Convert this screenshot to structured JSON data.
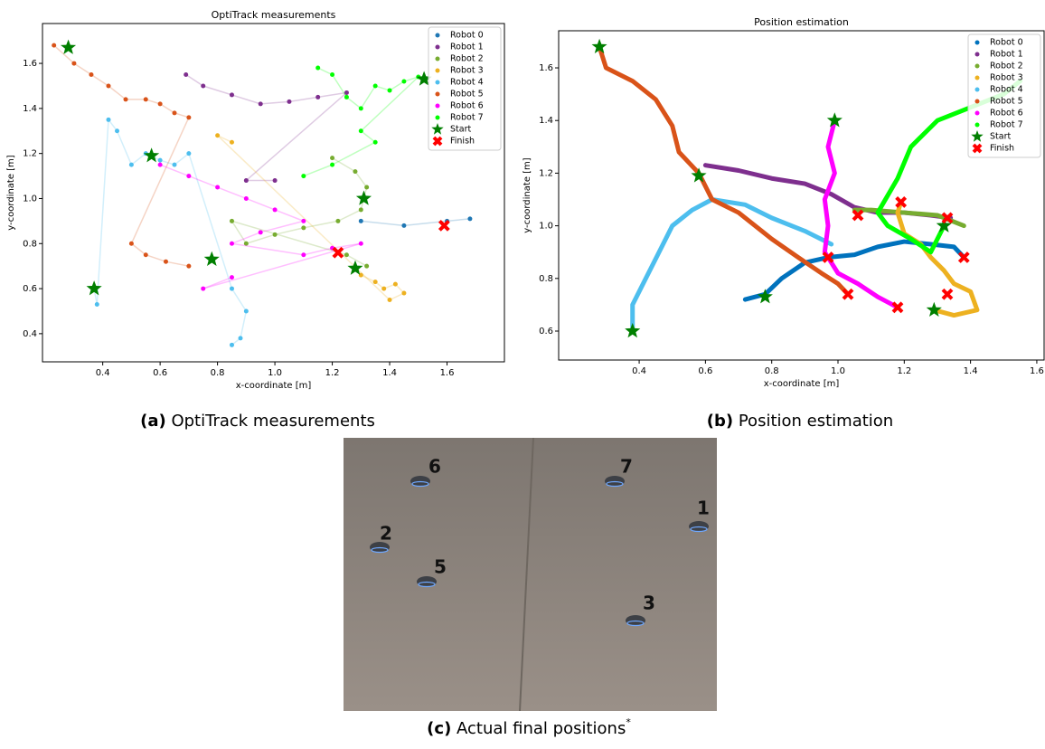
{
  "chart_data": [
    {
      "type": "scatter",
      "title": "OptiTrack measurements",
      "xlabel": "x-coordinate [m]",
      "ylabel": "y-coordinate [m]",
      "xlim": [
        0.19,
        1.8
      ],
      "ylim": [
        0.275,
        1.777
      ],
      "xticks": [
        0.4,
        0.6,
        0.8,
        {
          "value": 1,
          "label": "1.0"
        },
        1.2,
        1.4,
        1.6
      ],
      "yticks": [
        0.4,
        0.6,
        0.8,
        {
          "value": 1,
          "label": "1.0"
        },
        1.2,
        1.4,
        1.6
      ],
      "legend": "upper right",
      "series": [
        {
          "name": "Robot 0",
          "color": "#1f77b4",
          "marker": "dot",
          "x": [
            1.3,
            1.45,
            1.6,
            1.68
          ],
          "values": [
            0.9,
            0.88,
            0.9,
            0.91
          ]
        },
        {
          "name": "Robot 1",
          "color": "#7e2f8e",
          "marker": "dot",
          "x": [
            0.69,
            0.75,
            0.85,
            0.95,
            1.05,
            1.15,
            1.25,
            0.9,
            1.0
          ],
          "values": [
            1.55,
            1.5,
            1.46,
            1.42,
            1.43,
            1.45,
            1.47,
            1.08,
            1.08
          ]
        },
        {
          "name": "Robot 2",
          "color": "#77ac30",
          "marker": "dot",
          "x": [
            1.2,
            1.28,
            1.32,
            1.3,
            1.22,
            1.1,
            1.0,
            0.9,
            0.85,
            1.25,
            1.32
          ],
          "values": [
            1.18,
            1.12,
            1.05,
            0.95,
            0.9,
            0.87,
            0.84,
            0.8,
            0.9,
            0.75,
            0.7
          ]
        },
        {
          "name": "Robot 3",
          "color": "#edb120",
          "marker": "dot",
          "x": [
            1.3,
            1.35,
            1.38,
            1.42,
            1.45,
            1.4,
            0.8,
            0.85
          ],
          "values": [
            0.66,
            0.63,
            0.6,
            0.62,
            0.58,
            0.55,
            1.28,
            1.25
          ]
        },
        {
          "name": "Robot 4",
          "color": "#4dbeee",
          "marker": "dot",
          "x": [
            0.37,
            0.38,
            0.42,
            0.45,
            0.5,
            0.55,
            0.6,
            0.65,
            0.7,
            0.85,
            0.9,
            0.88,
            0.85
          ],
          "values": [
            0.6,
            0.53,
            1.35,
            1.3,
            1.15,
            1.2,
            1.17,
            1.15,
            1.2,
            0.6,
            0.5,
            0.38,
            0.35
          ]
        },
        {
          "name": "Robot 5",
          "color": "#d95319",
          "marker": "dot",
          "x": [
            0.23,
            0.3,
            0.36,
            0.42,
            0.48,
            0.55,
            0.6,
            0.65,
            0.7,
            0.5,
            0.55,
            0.62,
            0.7
          ],
          "values": [
            1.68,
            1.6,
            1.55,
            1.5,
            1.44,
            1.44,
            1.42,
            1.38,
            1.36,
            0.8,
            0.75,
            0.72,
            0.7
          ]
        },
        {
          "name": "Robot 6",
          "color": "#ff00ff",
          "marker": "dot",
          "x": [
            0.6,
            0.7,
            0.8,
            0.9,
            1.0,
            1.1,
            0.95,
            0.85,
            1.1,
            1.2,
            1.3,
            0.75,
            0.85
          ],
          "values": [
            1.15,
            1.1,
            1.05,
            1.0,
            0.95,
            0.9,
            0.85,
            0.8,
            0.75,
            0.78,
            0.8,
            0.6,
            0.65
          ]
        },
        {
          "name": "Robot 7",
          "color": "#00ff00",
          "marker": "dot",
          "x": [
            1.15,
            1.2,
            1.25,
            1.3,
            1.35,
            1.4,
            1.45,
            1.5,
            1.3,
            1.35,
            1.2,
            1.1
          ],
          "values": [
            1.58,
            1.55,
            1.45,
            1.4,
            1.5,
            1.48,
            1.52,
            1.54,
            1.3,
            1.25,
            1.15,
            1.1
          ]
        },
        {
          "name": "Start",
          "color": "#007f00",
          "marker": "star",
          "x": [
            0.28,
            0.57,
            0.37,
            0.78,
            1.52,
            1.31,
            1.28
          ],
          "values": [
            1.67,
            1.19,
            0.6,
            0.73,
            1.53,
            1.0,
            0.69
          ]
        },
        {
          "name": "Finish",
          "color": "#ff0000",
          "marker": "x",
          "x": [
            1.22,
            1.59
          ],
          "values": [
            0.76,
            0.88
          ]
        }
      ]
    },
    {
      "type": "line",
      "title": "Position estimation",
      "xlabel": "x-coordinate [m]",
      "ylabel": "y-coordinate [m]",
      "xlim": [
        0.157,
        1.622
      ],
      "ylim": [
        0.49,
        1.741
      ],
      "xticks": [
        0.4,
        0.6,
        0.8,
        {
          "value": 1,
          "label": "1.0"
        },
        1.2,
        1.4,
        1.6
      ],
      "yticks": [
        0.6,
        0.8,
        {
          "value": 1,
          "label": "1.0"
        },
        1.2,
        1.4,
        1.6
      ],
      "legend": "upper right",
      "series": [
        {
          "name": "Robot 0",
          "color": "#0072bd",
          "marker": "dot",
          "x": [
            0.72,
            0.78,
            0.83,
            0.9,
            0.97,
            1.05,
            1.12,
            1.2,
            1.28,
            1.35,
            1.38
          ],
          "values": [
            0.72,
            0.74,
            0.8,
            0.86,
            0.88,
            0.89,
            0.92,
            0.94,
            0.93,
            0.92,
            0.88
          ]
        },
        {
          "name": "Robot 1",
          "color": "#7e2f8e",
          "marker": "dot",
          "x": [
            0.6,
            0.7,
            0.8,
            0.9,
            0.98,
            1.05,
            1.12,
            1.2,
            1.28,
            1.34
          ],
          "values": [
            1.23,
            1.21,
            1.18,
            1.16,
            1.12,
            1.07,
            1.05,
            1.05,
            1.04,
            1.03
          ]
        },
        {
          "name": "Robot 2",
          "color": "#77ac30",
          "marker": "dot",
          "x": [
            1.38,
            1.3,
            1.2,
            1.1,
            1.05
          ],
          "values": [
            1.0,
            1.04,
            1.05,
            1.06,
            1.06
          ]
        },
        {
          "name": "Robot 3",
          "color": "#edb120",
          "marker": "dot",
          "x": [
            1.29,
            1.35,
            1.42,
            1.4,
            1.35,
            1.32,
            1.28,
            1.25,
            1.2,
            1.18,
            1.19
          ],
          "values": [
            0.68,
            0.66,
            0.68,
            0.75,
            0.78,
            0.83,
            0.88,
            0.93,
            0.97,
            1.05,
            1.09
          ]
        },
        {
          "name": "Robot 4",
          "color": "#4dbeee",
          "marker": "dot",
          "x": [
            0.38,
            0.38,
            0.42,
            0.46,
            0.5,
            0.56,
            0.62,
            0.72,
            0.8,
            0.9,
            0.98
          ],
          "values": [
            0.6,
            0.7,
            0.8,
            0.9,
            1.0,
            1.06,
            1.1,
            1.08,
            1.03,
            0.98,
            0.93
          ]
        },
        {
          "name": "Robot 5",
          "color": "#d95319",
          "marker": "dot",
          "x": [
            0.28,
            0.3,
            0.38,
            0.45,
            0.5,
            0.52,
            0.58,
            0.62,
            0.7,
            0.8,
            0.88,
            0.95,
            1.0,
            1.03
          ],
          "values": [
            1.68,
            1.6,
            1.55,
            1.48,
            1.38,
            1.28,
            1.2,
            1.1,
            1.05,
            0.95,
            0.88,
            0.82,
            0.78,
            0.74
          ]
        },
        {
          "name": "Robot 6",
          "color": "#ff00ff",
          "marker": "dot",
          "x": [
            0.99,
            0.97,
            0.99,
            0.96,
            0.97,
            0.96,
            1.0,
            1.06,
            1.12,
            1.18
          ],
          "values": [
            1.4,
            1.3,
            1.2,
            1.1,
            1.0,
            0.9,
            0.82,
            0.78,
            0.73,
            0.69
          ]
        },
        {
          "name": "Robot 7",
          "color": "#00ff00",
          "marker": "dot",
          "x": [
            1.32,
            1.28,
            1.22,
            1.15,
            1.12,
            1.18,
            1.22,
            1.3,
            1.4,
            1.5,
            1.55
          ],
          "values": [
            1.0,
            0.9,
            0.95,
            1.0,
            1.05,
            1.18,
            1.3,
            1.4,
            1.45,
            1.5,
            1.55
          ]
        },
        {
          "name": "Start",
          "color": "#007f00",
          "marker": "star",
          "x": [
            0.28,
            0.58,
            0.38,
            0.78,
            0.99,
            1.32,
            1.29
          ],
          "values": [
            1.68,
            1.19,
            0.6,
            0.73,
            1.4,
            1.0,
            0.68
          ]
        },
        {
          "name": "Finish",
          "color": "#ff0000",
          "marker": "x",
          "x": [
            1.19,
            1.06,
            1.33,
            1.38,
            0.97,
            1.03,
            1.33,
            1.18
          ],
          "values": [
            1.09,
            1.04,
            1.03,
            0.88,
            0.88,
            0.74,
            0.74,
            0.69
          ]
        }
      ]
    }
  ],
  "captions": [
    {
      "label": "(a)",
      "text": "OptiTrack measurements"
    },
    {
      "label": "(b)",
      "text": "Position estimation"
    },
    {
      "label": "(c)",
      "text": "Actual final positions",
      "note": "*"
    }
  ],
  "photo": {
    "labels": [
      "6",
      "7",
      "1",
      "2",
      "5",
      "3"
    ]
  }
}
